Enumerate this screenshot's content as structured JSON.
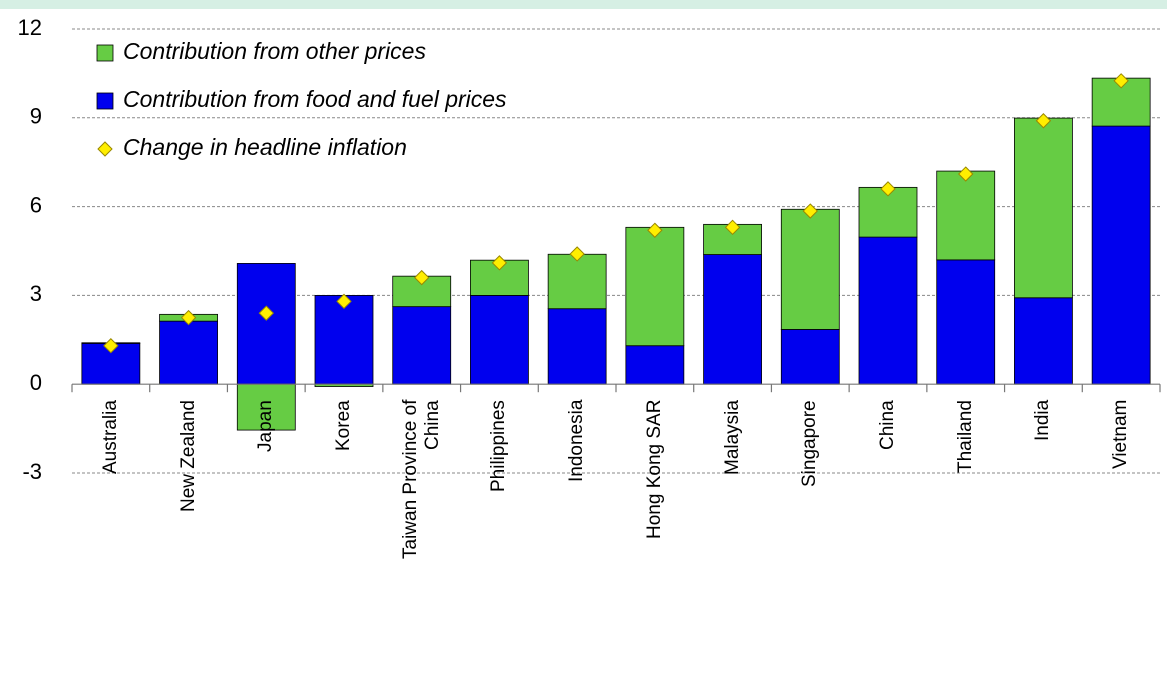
{
  "chart_data": {
    "type": "bar",
    "stacked": true,
    "categories": [
      "Australia",
      "New Zealand",
      "Japan",
      "Korea",
      "Taiwan Province of China",
      "Philippines",
      "Indonesia",
      "Hong Kong SAR",
      "Malaysia",
      "Singapore",
      "China",
      "Thailand",
      "India",
      "Vietnam"
    ],
    "series": [
      {
        "name": "Contribution from other prices",
        "color": "#66cc44",
        "type": "bar",
        "values": [
          0.02,
          0.23,
          -1.55,
          -0.08,
          1.03,
          1.19,
          1.84,
          4.0,
          1.02,
          4.06,
          1.68,
          3.0,
          6.07,
          1.62
        ]
      },
      {
        "name": "Contribution from food and fuel prices",
        "color": "#0000ee",
        "type": "bar",
        "values": [
          1.38,
          2.13,
          4.08,
          3.0,
          2.62,
          3.0,
          2.55,
          1.3,
          4.38,
          1.85,
          4.97,
          4.2,
          2.92,
          8.72
        ]
      },
      {
        "name": "Change in headline inflation",
        "color": "#ffee00",
        "type": "scatter",
        "marker": "diamond",
        "values": [
          1.3,
          2.25,
          2.4,
          2.8,
          3.6,
          4.1,
          4.4,
          5.2,
          5.3,
          5.85,
          6.6,
          7.1,
          8.9,
          10.25
        ]
      }
    ],
    "ylim": [
      -4,
      12
    ],
    "yticks": [
      -3,
      0,
      3,
      6,
      9,
      12
    ],
    "grid": true,
    "legend": "top-left"
  }
}
